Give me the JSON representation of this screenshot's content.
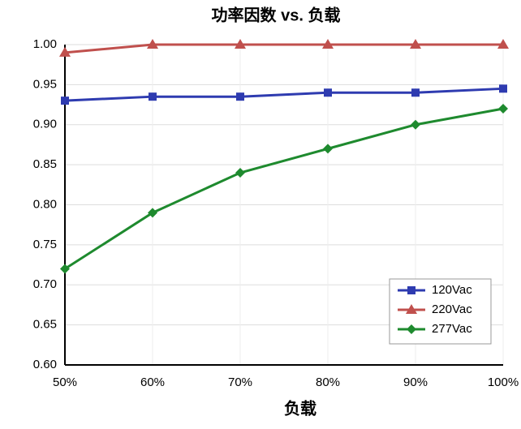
{
  "chart_data": {
    "type": "line",
    "title": "功率因数 vs. 负载",
    "x_label": "负载",
    "categories": [
      "50%",
      "60%",
      "70%",
      "80%",
      "90%",
      "100%"
    ],
    "series": [
      {
        "name": "120Vac",
        "color": "#2e3bb0",
        "marker": "square",
        "values": [
          0.93,
          0.935,
          0.935,
          0.94,
          0.94,
          0.945
        ]
      },
      {
        "name": "220Vac",
        "color": "#c0504d",
        "marker": "triangle",
        "values": [
          0.99,
          1.0,
          1.0,
          1.0,
          1.0,
          1.0
        ]
      },
      {
        "name": "277Vac",
        "color": "#1e8a2e",
        "marker": "diamond",
        "values": [
          0.72,
          0.79,
          0.84,
          0.87,
          0.9,
          0.92
        ]
      }
    ],
    "ylim": [
      0.6,
      1.0
    ],
    "yticks": [
      {
        "value": 0.6,
        "label": "0.60"
      },
      {
        "value": 0.65,
        "label": "0.65"
      },
      {
        "value": 0.7,
        "label": "0.70"
      },
      {
        "value": 0.75,
        "label": "0.75"
      },
      {
        "value": 0.8,
        "label": "0.80"
      },
      {
        "value": 0.85,
        "label": "0.85"
      },
      {
        "value": 0.9,
        "label": "0.90"
      },
      {
        "value": 0.95,
        "label": "0.95"
      },
      {
        "value": 1.0,
        "label": "1.00"
      }
    ],
    "grid": true,
    "legend": "lower right"
  }
}
